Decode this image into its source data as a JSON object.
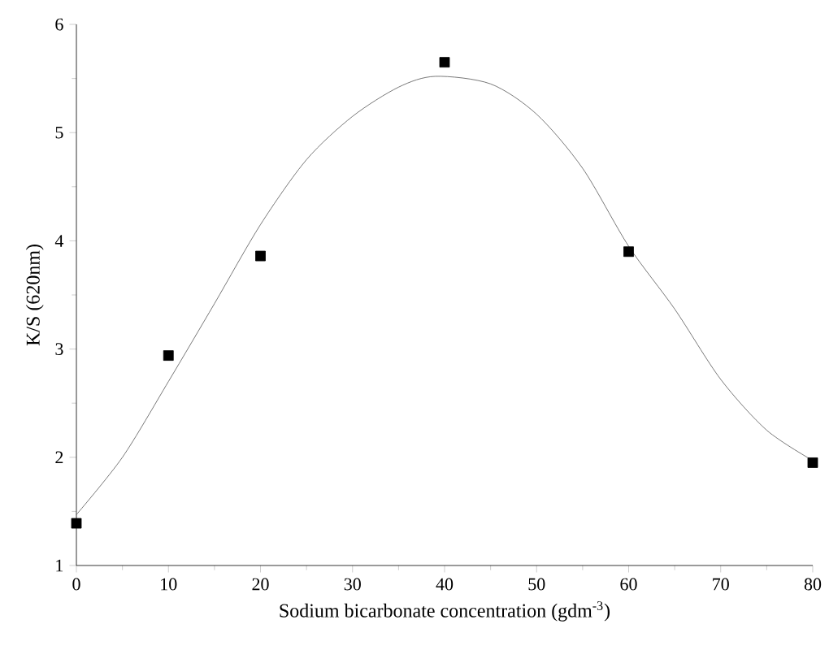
{
  "chart_data": {
    "type": "scatter",
    "xlabel": "Sodium bicarbonate concentration (gdm$^{-3}$)",
    "ylabel": "K/S (620nm)",
    "marker": "square",
    "xlim": [
      0,
      80
    ],
    "ylim": [
      1,
      6
    ],
    "xticks": [
      0,
      10,
      20,
      30,
      40,
      50,
      60,
      70,
      80
    ],
    "yticks": [
      1,
      2,
      3,
      4,
      5,
      6
    ],
    "grid": false,
    "series": [
      {
        "color": "#000000",
        "x": [
          0,
          10,
          20,
          40,
          60,
          80
        ],
        "values": [
          1.39,
          2.94,
          3.86,
          5.65,
          3.9,
          1.95
        ]
      },
      {
        "type": "line",
        "color": "#555555",
        "marker": "none",
        "x": [
          0,
          5,
          10,
          15,
          20,
          25,
          30,
          35,
          39,
          45,
          50,
          55,
          60,
          65,
          70,
          75,
          80
        ],
        "values": [
          1.47,
          2.0,
          2.7,
          3.42,
          4.15,
          4.75,
          5.15,
          5.42,
          5.52,
          5.45,
          5.17,
          4.67,
          3.95,
          3.37,
          2.72,
          2.25,
          1.97
        ]
      }
    ]
  }
}
